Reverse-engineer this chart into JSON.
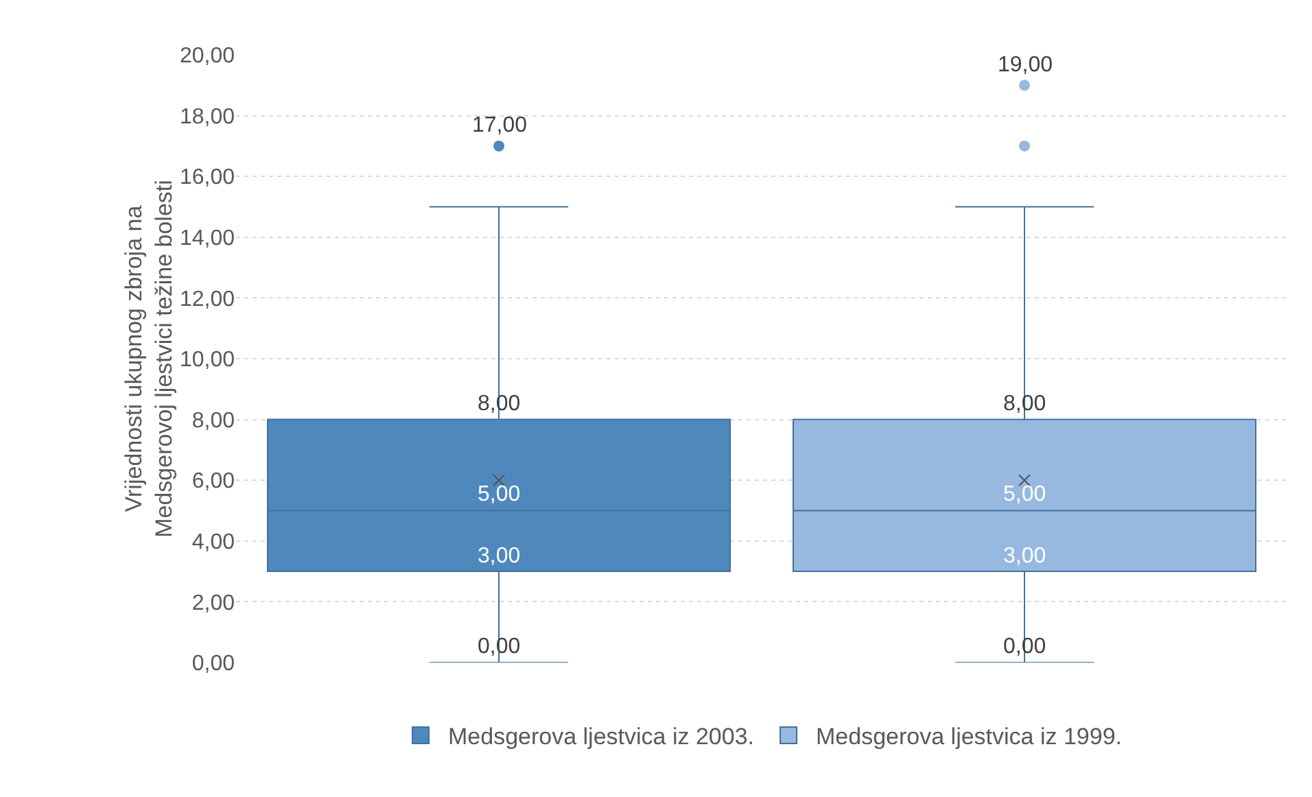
{
  "chart_data": {
    "type": "box",
    "ylabel": "Vrijednosti ukupnog zbroja na Medsgerovoj ljestvici težine bolesti",
    "categories": [
      null
    ],
    "series": [
      {
        "name": "Medsgerova ljestvica iz 2003.",
        "color": "#4f88bd",
        "boxes": [
          {
            "low": 0,
            "q1": 3,
            "median": 5,
            "q3": 8,
            "high": 15,
            "mean": 6,
            "outliers": [
              17
            ]
          }
        ],
        "value_labels": [
          [
            "0,00",
            "3,00",
            "5,00",
            "8,00",
            null,
            null,
            "17,00"
          ]
        ]
      },
      {
        "name": "Medsgerova ljestvica iz 1999.",
        "color": "#97b8df",
        "boxes": [
          {
            "low": 0,
            "q1": 3,
            "median": 5,
            "q3": 8,
            "high": 15,
            "mean": 6,
            "outliers": [
              17,
              19
            ]
          }
        ],
        "value_labels": [
          [
            "0,00",
            "3,00",
            "5,00",
            "8,00",
            null,
            null,
            null,
            "19,00"
          ]
        ]
      }
    ],
    "ylim": [
      0,
      20
    ],
    "yticks": [
      {
        "value": 0,
        "label": "0,00"
      },
      {
        "value": 2,
        "label": "2,00"
      },
      {
        "value": 4,
        "label": "4,00"
      },
      {
        "value": 6,
        "label": "6,00"
      },
      {
        "value": 8,
        "label": "8,00"
      },
      {
        "value": 10,
        "label": "10,00"
      },
      {
        "value": 12,
        "label": "12,00"
      },
      {
        "value": 14,
        "label": "14,00"
      },
      {
        "value": 16,
        "label": "16,00"
      },
      {
        "value": 18,
        "label": "18,00"
      },
      {
        "value": 20,
        "label": "20,00"
      }
    ],
    "grid": "y",
    "legend": "bottom",
    "tick_labels": "y"
  }
}
